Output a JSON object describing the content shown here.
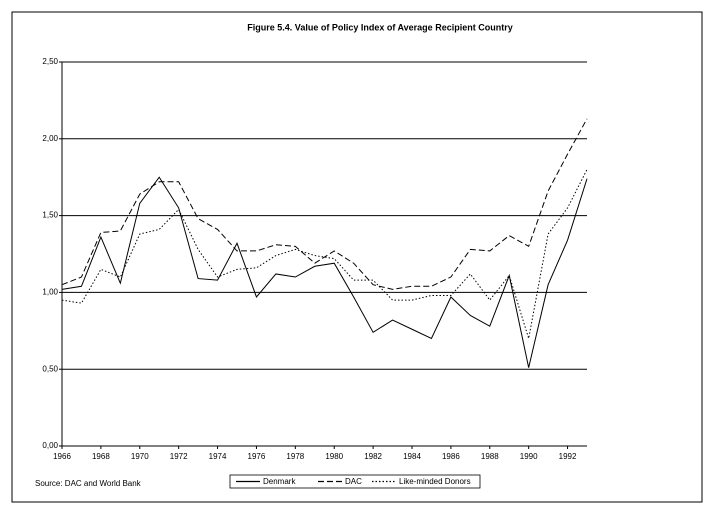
{
  "chart_data": {
    "type": "line",
    "title": "Figure 5.4. Value of Policy Index of Average Recipient Country",
    "source": "Source: DAC and World Bank",
    "x": [
      1966,
      1967,
      1968,
      1969,
      1970,
      1971,
      1972,
      1973,
      1974,
      1975,
      1976,
      1977,
      1978,
      1979,
      1980,
      1981,
      1982,
      1983,
      1984,
      1985,
      1986,
      1987,
      1988,
      1989,
      1990,
      1991,
      1992,
      1993
    ],
    "xlim": [
      1966,
      1993
    ],
    "xticks": [
      1966,
      1968,
      1970,
      1972,
      1974,
      1976,
      1978,
      1980,
      1982,
      1984,
      1986,
      1988,
      1990,
      1992
    ],
    "ylim": [
      0,
      2.5
    ],
    "yticks": [
      {
        "value": 0,
        "label": "0,00"
      },
      {
        "value": 0.5,
        "label": "0,50"
      },
      {
        "value": 1,
        "label": "1,00"
      },
      {
        "value": 1.5,
        "label": "1,50"
      },
      {
        "value": 2,
        "label": "2,00"
      },
      {
        "value": 2.5,
        "label": "2,50"
      }
    ],
    "grid": true,
    "series": [
      {
        "name": "Denmark",
        "color": "#000000",
        "dash": "solid",
        "values": [
          1.02,
          1.04,
          1.36,
          1.06,
          1.58,
          1.75,
          1.55,
          1.09,
          1.08,
          1.32,
          0.97,
          1.12,
          1.1,
          1.17,
          1.19,
          0.97,
          0.74,
          0.82,
          0.76,
          0.7,
          0.97,
          0.85,
          0.78,
          1.11,
          0.51,
          1.05,
          1.34,
          1.74
        ]
      },
      {
        "name": "DAC",
        "color": "#000000",
        "dash": "dashed",
        "values": [
          1.05,
          1.1,
          1.39,
          1.4,
          1.64,
          1.72,
          1.72,
          1.48,
          1.41,
          1.27,
          1.27,
          1.31,
          1.3,
          1.19,
          1.27,
          1.19,
          1.05,
          1.02,
          1.04,
          1.04,
          1.1,
          1.28,
          1.27,
          1.37,
          1.3,
          1.66,
          1.9,
          2.13
        ]
      },
      {
        "name": "Like-minded Donors",
        "color": "#000000",
        "dash": "dotted",
        "values": [
          0.95,
          0.93,
          1.15,
          1.1,
          1.38,
          1.41,
          1.54,
          1.28,
          1.1,
          1.15,
          1.16,
          1.24,
          1.28,
          1.24,
          1.22,
          1.08,
          1.08,
          0.95,
          0.95,
          0.98,
          0.98,
          1.12,
          0.95,
          1.11,
          0.7,
          1.38,
          1.55,
          1.8
        ]
      }
    ]
  }
}
